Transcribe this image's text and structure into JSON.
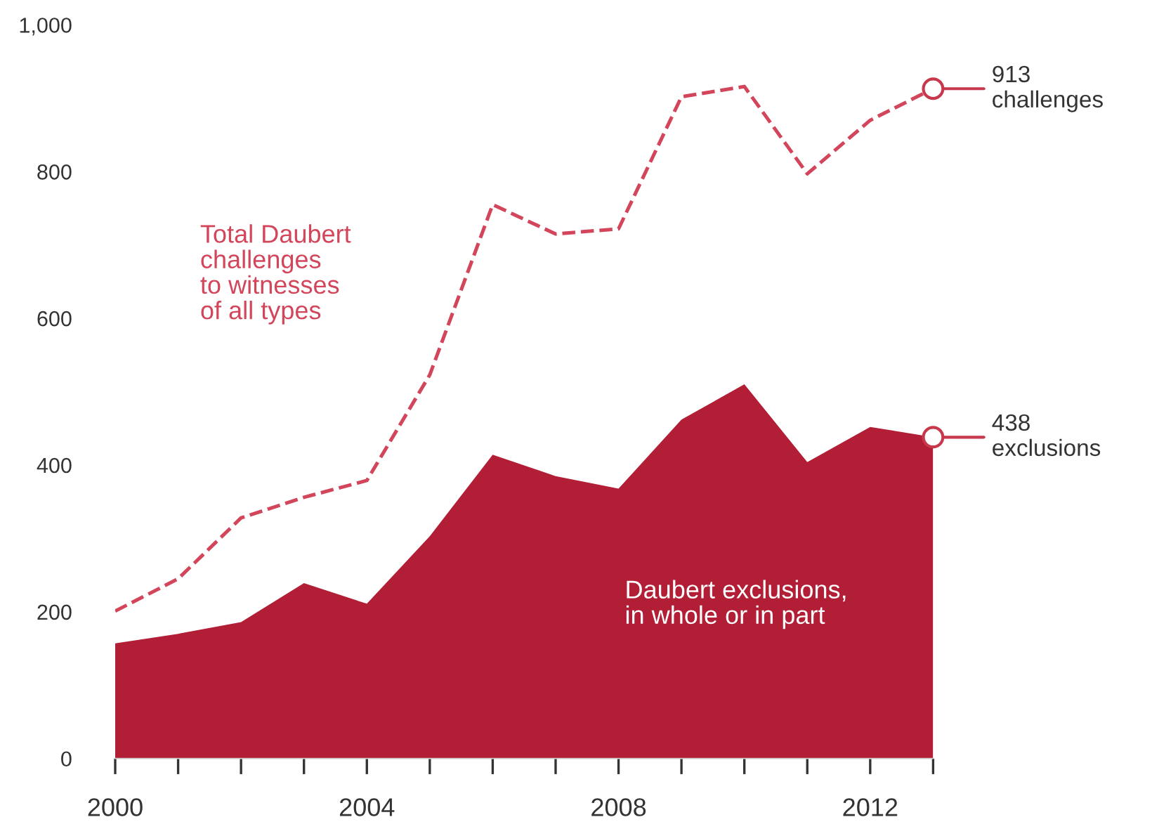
{
  "chart_data": {
    "type": "area",
    "x": [
      2000,
      2001,
      2002,
      2003,
      2004,
      2005,
      2006,
      2007,
      2008,
      2009,
      2010,
      2011,
      2012,
      2013
    ],
    "series": [
      {
        "name": "Total Daubert\nchallenges\nto witnesses\nof all types",
        "type": "line",
        "line_style": "dashed",
        "color": "#d2455a",
        "values": [
          201,
          245,
          328,
          356,
          379,
          523,
          755,
          715,
          722,
          902,
          916,
          797,
          870,
          913
        ]
      },
      {
        "name": "Daubert exclusions,\nin whole or in part",
        "color": "#b21e35",
        "values": [
          157,
          170,
          186,
          239,
          211,
          303,
          414,
          385,
          368,
          462,
          510,
          404,
          452,
          438
        ]
      }
    ],
    "annotations": [
      {
        "text": "913\nchallenges",
        "x": 2013,
        "y": 913
      },
      {
        "text": "438\nexclusions",
        "x": 2013,
        "y": 438
      }
    ],
    "xlim": [
      2000,
      2013
    ],
    "ylim": [
      0,
      1000
    ],
    "xticks": [
      2000,
      {
        "value": 2001,
        "label": null
      },
      {
        "value": 2002,
        "label": null
      },
      {
        "value": 2003,
        "label": null
      },
      2004,
      {
        "value": 2005,
        "label": null
      },
      {
        "value": 2006,
        "label": null
      },
      {
        "value": 2007,
        "label": null
      },
      2008,
      {
        "value": 2009,
        "label": null
      },
      {
        "value": 2010,
        "label": null
      },
      {
        "value": 2011,
        "label": null
      },
      2012,
      {
        "value": 2013,
        "label": null
      }
    ],
    "yticks": [
      0,
      200,
      400,
      600,
      800,
      {
        "value": 1000,
        "label": "1,000"
      }
    ],
    "grid": false,
    "legend": false
  }
}
